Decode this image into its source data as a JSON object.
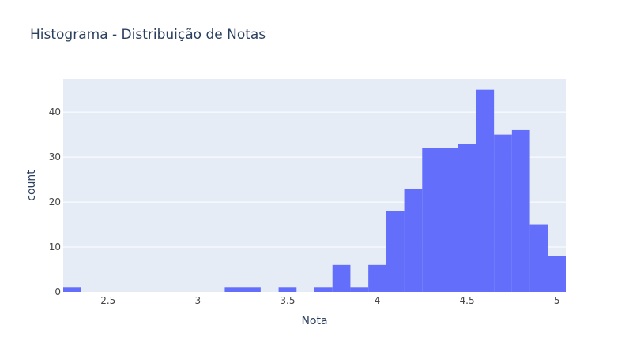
{
  "chart_data": {
    "type": "bar",
    "title": "Histograma - Distribuição de Notas",
    "xlabel": "Nota",
    "ylabel": "count",
    "xlim": [
      2.25,
      5.05
    ],
    "ylim": [
      0,
      47.4
    ],
    "bin_width": 0.1,
    "bins": [
      {
        "x0": 2.25,
        "x1": 2.35,
        "count": 1
      },
      {
        "x0": 3.15,
        "x1": 3.25,
        "count": 1
      },
      {
        "x0": 3.25,
        "x1": 3.35,
        "count": 1
      },
      {
        "x0": 3.45,
        "x1": 3.55,
        "count": 1
      },
      {
        "x0": 3.65,
        "x1": 3.75,
        "count": 1
      },
      {
        "x0": 3.75,
        "x1": 3.85,
        "count": 6
      },
      {
        "x0": 3.85,
        "x1": 3.95,
        "count": 1
      },
      {
        "x0": 3.95,
        "x1": 4.05,
        "count": 6
      },
      {
        "x0": 4.05,
        "x1": 4.15,
        "count": 18
      },
      {
        "x0": 4.15,
        "x1": 4.25,
        "count": 23
      },
      {
        "x0": 4.25,
        "x1": 4.35,
        "count": 32
      },
      {
        "x0": 4.35,
        "x1": 4.45,
        "count": 32
      },
      {
        "x0": 4.45,
        "x1": 4.55,
        "count": 33
      },
      {
        "x0": 4.55,
        "x1": 4.65,
        "count": 45
      },
      {
        "x0": 4.65,
        "x1": 4.75,
        "count": 35
      },
      {
        "x0": 4.75,
        "x1": 4.85,
        "count": 36
      },
      {
        "x0": 4.85,
        "x1": 4.95,
        "count": 15
      },
      {
        "x0": 4.95,
        "x1": 5.05,
        "count": 8
      }
    ],
    "x_ticks": [
      {
        "value": 2.5,
        "label": "2.5"
      },
      {
        "value": 3,
        "label": "3"
      },
      {
        "value": 3.5,
        "label": "3.5"
      },
      {
        "value": 4,
        "label": "4"
      },
      {
        "value": 4.5,
        "label": "4.5"
      },
      {
        "value": 5,
        "label": "5"
      }
    ],
    "y_ticks": [
      {
        "value": 0,
        "label": "0"
      },
      {
        "value": 10,
        "label": "10"
      },
      {
        "value": 20,
        "label": "20"
      },
      {
        "value": 30,
        "label": "30"
      },
      {
        "value": 40,
        "label": "40"
      }
    ],
    "grid": true,
    "colors": {
      "bar": "#636efa",
      "plot_background": "#e5ecf6",
      "grid": "#ffffff",
      "text": "#2a3f5f",
      "tick_text": "#444444"
    }
  }
}
